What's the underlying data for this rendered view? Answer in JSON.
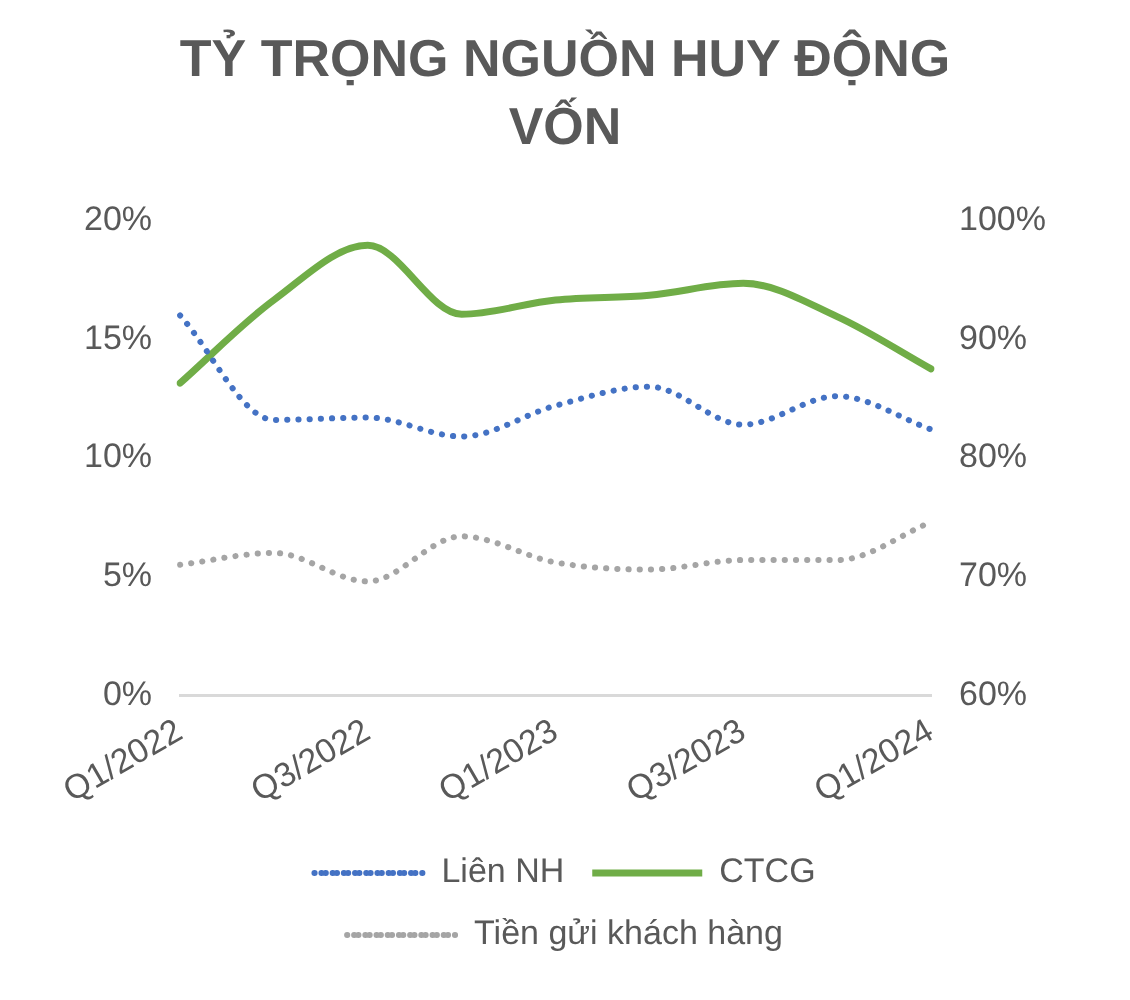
{
  "chart_data": {
    "type": "line",
    "title": "TỶ TRỌNG NGUỒN HUY ĐỘNG VỐN",
    "categories": [
      "Q1/2022",
      null,
      "Q3/2022",
      null,
      "Q1/2023",
      null,
      "Q3/2023",
      null,
      "Q1/2024"
    ],
    "series": [
      {
        "name": "Liên NH",
        "color": "#4472c4",
        "line_style": "dotted",
        "values": [
          16.0,
          11.6,
          11.7,
          10.9,
          12.2,
          13.0,
          11.4,
          12.6,
          11.2
        ]
      },
      {
        "name": "CTCG",
        "color": "#70ad47",
        "line_style": "solid",
        "axis": "y2",
        "values": [
          86.3,
          93.3,
          97.9,
          92.1,
          93.3,
          93.7,
          94.7,
          91.9,
          87.5
        ]
      },
      {
        "name": "Tiền gửi khách hàng",
        "color": "#a5a5a5",
        "line_style": "dotted",
        "values": [
          5.5,
          6.0,
          4.8,
          6.7,
          5.6,
          5.3,
          5.7,
          5.7,
          7.3
        ]
      }
    ],
    "ylim": [
      0,
      20
    ],
    "yticks": [
      {
        "value": 0,
        "label": "0%"
      },
      {
        "value": 5,
        "label": "5%"
      },
      {
        "value": 10,
        "label": "10%"
      },
      {
        "value": 15,
        "label": "15%"
      },
      {
        "value": 20,
        "label": "20%"
      }
    ],
    "y2lim": [
      60,
      100
    ],
    "y2ticks": [
      {
        "value": 60,
        "label": "60%"
      },
      {
        "value": 70,
        "label": "70%"
      },
      {
        "value": 80,
        "label": "80%"
      },
      {
        "value": 90,
        "label": "90%"
      },
      {
        "value": 100,
        "label": "100%"
      }
    ],
    "grid": false,
    "legend": "bottom",
    "marker": "none"
  }
}
